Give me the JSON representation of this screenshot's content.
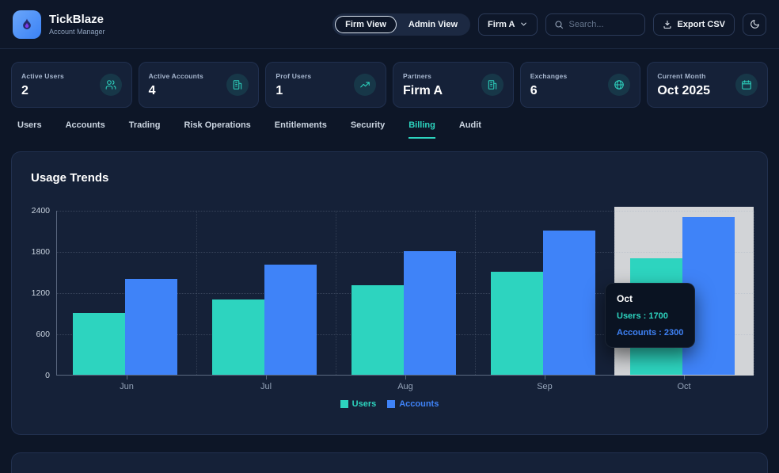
{
  "brand": {
    "name": "TickBlaze",
    "subtitle": "Account Manager"
  },
  "topbar": {
    "view_toggle": {
      "options": [
        "Firm View",
        "Admin View"
      ],
      "active": "Firm View"
    },
    "firm_select": {
      "value": "Firm A"
    },
    "search": {
      "placeholder": "Search..."
    },
    "export_label": "Export CSV"
  },
  "stats": [
    {
      "label": "Active Users",
      "value": "2",
      "icon": "users-icon"
    },
    {
      "label": "Active Accounts",
      "value": "4",
      "icon": "building-icon"
    },
    {
      "label": "Prof Users",
      "value": "1",
      "icon": "trend-up-icon"
    },
    {
      "label": "Partners",
      "value": "Firm A",
      "icon": "building-icon"
    },
    {
      "label": "Exchanges",
      "value": "6",
      "icon": "globe-icon"
    },
    {
      "label": "Current Month",
      "value": "Oct 2025",
      "icon": "calendar-icon"
    }
  ],
  "tabs": {
    "items": [
      "Users",
      "Accounts",
      "Trading",
      "Risk Operations",
      "Entitlements",
      "Security",
      "Billing",
      "Audit"
    ],
    "active": "Billing"
  },
  "chart_data": {
    "type": "bar",
    "title": "Usage Trends",
    "categories": [
      "Jun",
      "Jul",
      "Aug",
      "Sep",
      "Oct"
    ],
    "series": [
      {
        "name": "Users",
        "color": "#2dd4bf",
        "values": [
          900,
          1100,
          1300,
          1500,
          1700
        ]
      },
      {
        "name": "Accounts",
        "color": "#3f83f8",
        "values": [
          1400,
          1600,
          1800,
          2100,
          2300
        ]
      }
    ],
    "xlabel": "",
    "ylabel": "",
    "ylim": [
      0,
      2400
    ],
    "yticks": [
      0,
      600,
      1200,
      1800,
      2400
    ],
    "grid": "dotted",
    "legend_position": "bottom",
    "highlighted_category": "Oct",
    "tooltip": {
      "title": "Oct",
      "rows": [
        {
          "label": "Users",
          "value": "1700"
        },
        {
          "label": "Accounts",
          "value": "2300"
        }
      ]
    }
  },
  "colors": {
    "background": "#0d1627",
    "card": "#152138",
    "accent_teal": "#2dd4bf",
    "accent_blue": "#3f83f8",
    "highlight_gray": "#d2d4d7"
  }
}
